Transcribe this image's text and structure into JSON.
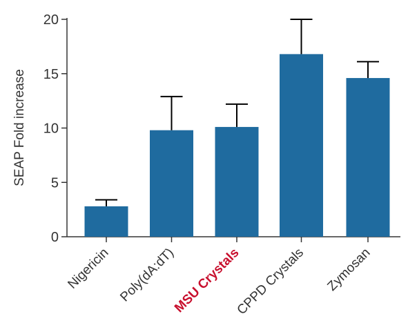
{
  "chart_data": {
    "type": "bar",
    "title": "",
    "xlabel": "",
    "ylabel": "SEAP Fold increase",
    "ylim": [
      0,
      20
    ],
    "yticks": [
      0,
      5,
      10,
      15,
      20
    ],
    "grid": false,
    "categories": [
      "Nigericin",
      "Poly(dA:dT)",
      "MSU Crystals",
      "CPPD Crystals",
      "Zymosan"
    ],
    "values": [
      2.8,
      9.8,
      10.1,
      16.8,
      14.6
    ],
    "error_upper": [
      0.6,
      3.1,
      2.1,
      3.2,
      1.5
    ],
    "highlighted_category": "MSU Crystals",
    "colors": {
      "bar": "#1f6b9f",
      "error_bar": "#000000",
      "axis": "#333333",
      "tick_label": "#333333",
      "highlight_label": "#c8102e"
    }
  }
}
